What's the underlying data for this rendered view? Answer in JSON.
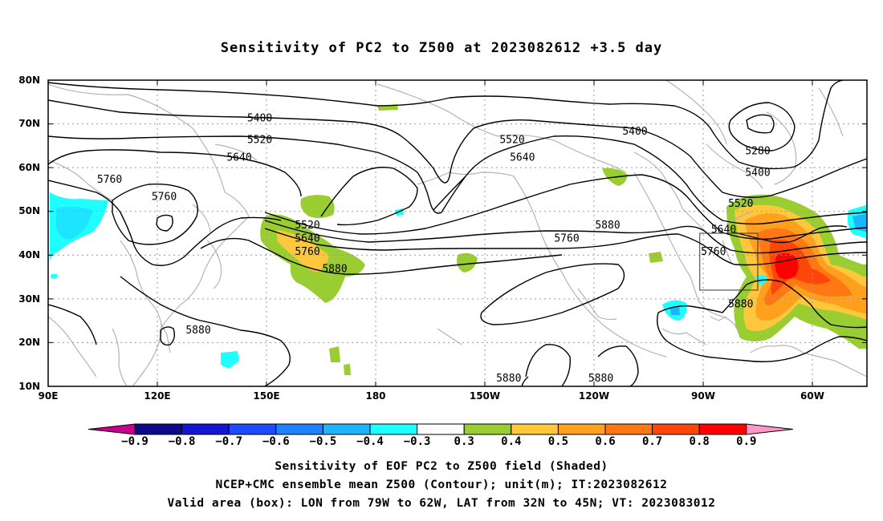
{
  "title": "Sensitivity of PC2 to Z500 at 2023082612 +3.5 day",
  "lat_labels": [
    "80N",
    "70N",
    "60N",
    "50N",
    "40N",
    "30N",
    "20N",
    "10N"
  ],
  "lon_labels": [
    "90E",
    "120E",
    "150E",
    "180",
    "150W",
    "120W",
    "90W",
    "60W"
  ],
  "contour_labels": [
    {
      "text": "5400",
      "lon": 152,
      "lat": 71.5
    },
    {
      "text": "5400",
      "lon": -98,
      "lat": 68.5
    },
    {
      "text": "5520",
      "lon": 152,
      "lat": 66.5
    },
    {
      "text": "5520",
      "lon": -134,
      "lat": 66.5
    },
    {
      "text": "5640",
      "lon": 146,
      "lat": 62.5
    },
    {
      "text": "5640",
      "lon": -131,
      "lat": 62.5
    },
    {
      "text": "5760",
      "lon": 108,
      "lat": 57.5
    },
    {
      "text": "5760",
      "lon": 124,
      "lat": 53.5
    },
    {
      "text": "5520",
      "lon": 166,
      "lat": 47
    },
    {
      "text": "5640",
      "lon": 166,
      "lat": 44
    },
    {
      "text": "5760",
      "lon": 166,
      "lat": 41
    },
    {
      "text": "5880",
      "lon": 174,
      "lat": 37
    },
    {
      "text": "5760",
      "lon": -118,
      "lat": 44
    },
    {
      "text": "5880",
      "lon": -106,
      "lat": 47
    },
    {
      "text": "5280",
      "lon": -62,
      "lat": 64
    },
    {
      "text": "5400",
      "lon": -62,
      "lat": 59
    },
    {
      "text": "5520",
      "lon": -67,
      "lat": 52
    },
    {
      "text": "5640",
      "lon": -72,
      "lat": 46
    },
    {
      "text": "5760",
      "lon": -75,
      "lat": 41
    },
    {
      "text": "5880",
      "lon": -67,
      "lat": 29
    },
    {
      "text": "5880",
      "lon": 134,
      "lat": 23
    },
    {
      "text": "5880",
      "lon": -135,
      "lat": 12
    },
    {
      "text": "5880",
      "lon": -108,
      "lat": 12
    }
  ],
  "colorbar": {
    "labels": [
      "−0.9",
      "−0.8",
      "−0.7",
      "−0.6",
      "−0.5",
      "−0.4",
      "−0.3",
      "0.3",
      "0.4",
      "0.5",
      "0.6",
      "0.7",
      "0.8",
      "0.9"
    ],
    "colors": [
      "#0a0a8a",
      "#1414d2",
      "#1e4bff",
      "#1e82ff",
      "#1eb4ff",
      "#1effff",
      "#ffffff",
      "#9acd32",
      "#ffc83c",
      "#ffa01e",
      "#ff7814",
      "#ff460a",
      "#ff0000"
    ],
    "left_triangle": "#c8008c",
    "right_triangle": "#ff96c8"
  },
  "valid_box": {
    "lon_w": -79,
    "lon_e": -62,
    "lat_s": 32,
    "lat_n": 45
  },
  "footer": [
    "Sensitivity of EOF PC2 to Z500 field (Shaded)",
    "NCEP+CMC ensemble mean Z500 (Contour); unit(m); IT:2023082612",
    "Valid area (box): LON from 79W to 62W, LAT from 32N to 45N; VT: 2023083012"
  ]
}
